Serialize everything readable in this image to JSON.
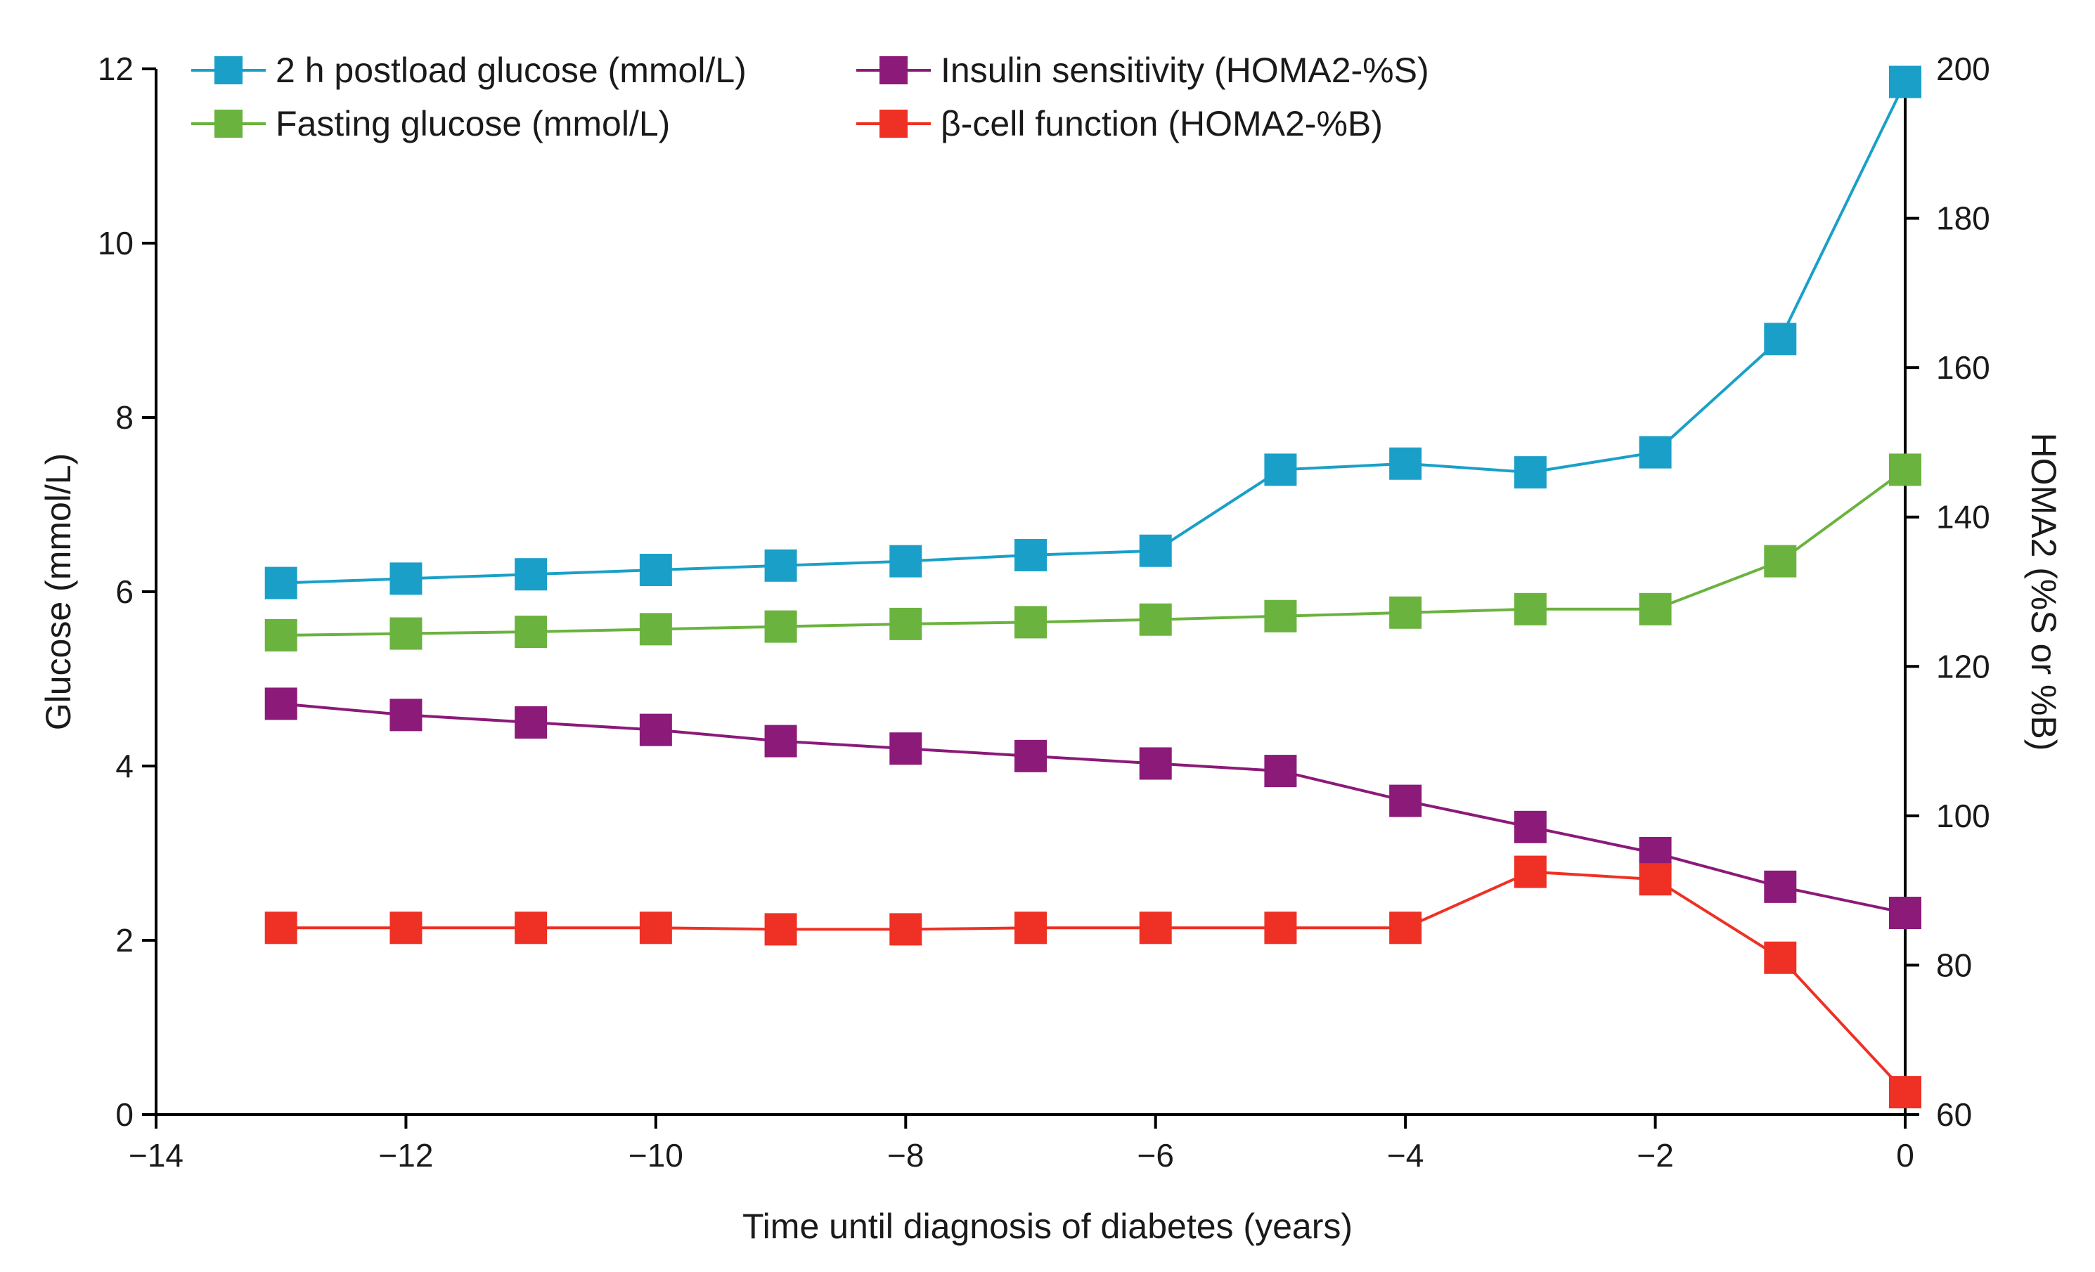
{
  "chart_data": {
    "type": "line",
    "title": "",
    "xlabel": "Time until diagnosis of diabetes (years)",
    "ylabel_left": "Glucose (mmol/L)",
    "ylabel_right": "HOMA2 (%S or %B)",
    "xlim": [
      -14,
      0
    ],
    "xticks": [
      -14,
      -12,
      -10,
      -8,
      -6,
      -4,
      -2,
      0
    ],
    "xtick_labels": [
      "−14",
      "−12",
      "−10",
      "−8",
      "−6",
      "−4",
      "−2",
      "0"
    ],
    "ylim_left": [
      0,
      12
    ],
    "yticks_left": [
      0,
      2,
      4,
      6,
      8,
      10,
      12
    ],
    "ytick_labels_left": [
      "0",
      "2",
      "4",
      "6",
      "8",
      "10",
      "12"
    ],
    "ylim_right": [
      60,
      200
    ],
    "yticks_right": [
      60,
      80,
      100,
      120,
      140,
      160,
      180,
      200
    ],
    "ytick_labels_right": [
      "60",
      "80",
      "100",
      "120",
      "140",
      "160",
      "180",
      "200"
    ],
    "grid": false,
    "legend_position": "top",
    "x": [
      -13,
      -12,
      -11,
      -10,
      -9,
      -8,
      -7,
      -6,
      -5,
      -4,
      -3,
      -2,
      -1,
      0
    ],
    "series": [
      {
        "name": "2 h postload glucose (mmol/L)",
        "axis": "left",
        "color": "#1aa0c8",
        "values": [
          6.1,
          6.15,
          6.2,
          6.25,
          6.3,
          6.35,
          6.42,
          6.47,
          7.4,
          7.47,
          7.37,
          7.6,
          8.9,
          11.85
        ]
      },
      {
        "name": "Fasting glucose (mmol/L)",
        "axis": "left",
        "color": "#6ab33e",
        "values": [
          5.5,
          5.52,
          5.54,
          5.57,
          5.6,
          5.63,
          5.65,
          5.68,
          5.72,
          5.76,
          5.8,
          5.8,
          6.35,
          7.4
        ]
      },
      {
        "name": "Insulin sensitivity (HOMA2-%S)",
        "axis": "right",
        "color": "#8b1a78",
        "values": [
          115,
          113.5,
          112.5,
          111.5,
          110,
          109,
          108,
          107,
          106,
          102,
          98.5,
          95,
          90.5,
          87
        ]
      },
      {
        "name": "β-cell function (HOMA2-%B)",
        "axis": "right",
        "color": "#ee3124",
        "values": [
          85,
          85,
          85,
          85,
          84.8,
          84.8,
          85,
          85,
          85,
          85,
          92.5,
          91.5,
          81,
          63
        ]
      }
    ]
  }
}
